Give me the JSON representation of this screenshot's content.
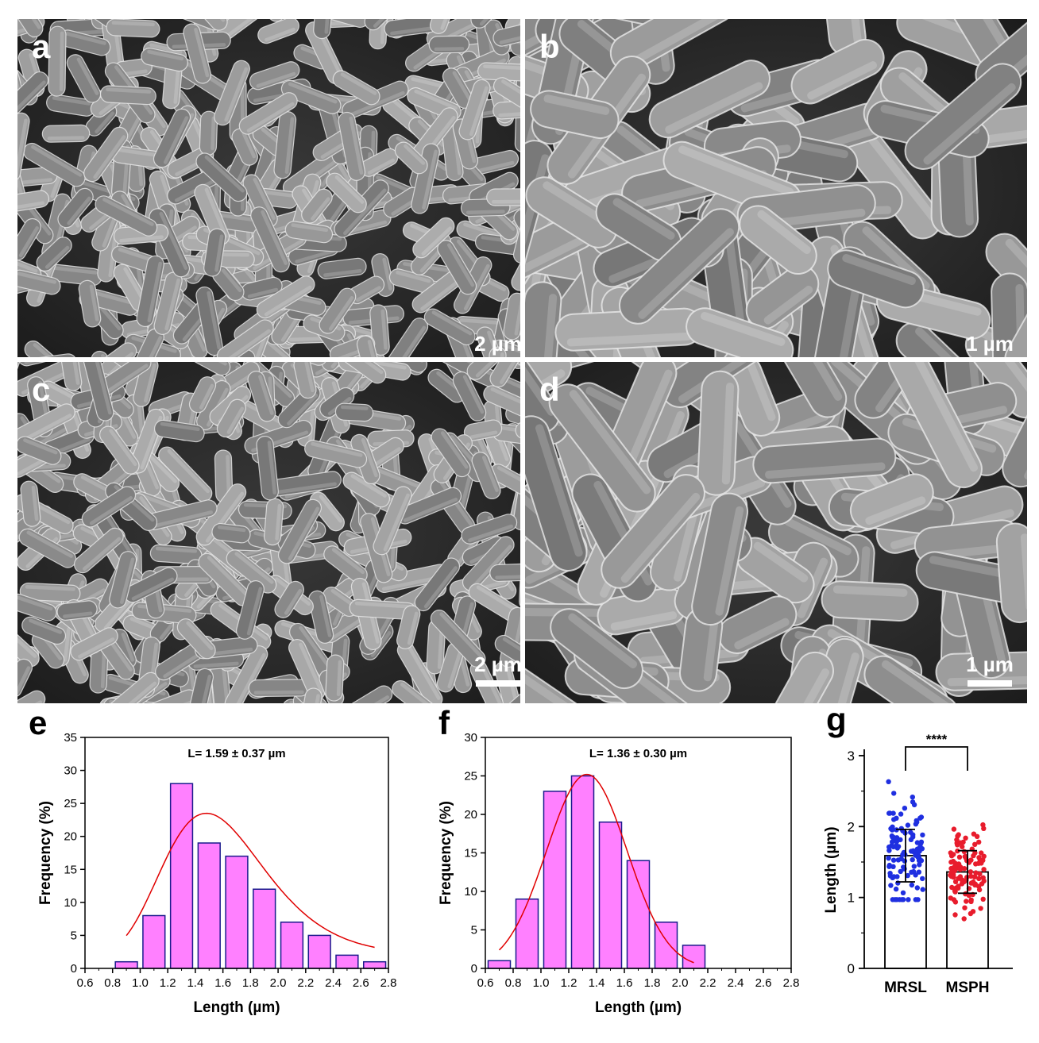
{
  "figure": {
    "panels": [
      {
        "id": "a",
        "label": "a",
        "scale": "2 µm",
        "bacteria_size": "small"
      },
      {
        "id": "b",
        "label": "b",
        "scale": "1 µm",
        "bacteria_size": "large"
      },
      {
        "id": "c",
        "label": "c",
        "scale": "2 µm",
        "bacteria_size": "small"
      },
      {
        "id": "d",
        "label": "d",
        "scale": "1 µm",
        "bacteria_size": "large"
      }
    ],
    "chart_labels": {
      "e": "e",
      "f": "f",
      "g": "g"
    }
  },
  "chart_data": [
    {
      "id": "e",
      "type": "bar",
      "title": "L= 1.59 ± 0.37 µm",
      "xlabel": "Length (µm)",
      "ylabel": "Frequency (%)",
      "xlim": [
        0.6,
        2.8
      ],
      "ylim": [
        0,
        35
      ],
      "xticks": [
        "0.6",
        "0.8",
        "1.0",
        "1.2",
        "1.4",
        "1.6",
        "1.8",
        "2.0",
        "2.2",
        "2.4",
        "2.6",
        "2.8"
      ],
      "yticks": [
        "0",
        "5",
        "10",
        "15",
        "20",
        "25",
        "30",
        "35"
      ],
      "bin_width": 0.2,
      "bin_centers": [
        0.9,
        1.1,
        1.3,
        1.5,
        1.7,
        1.9,
        2.1,
        2.3,
        2.5,
        2.7
      ],
      "values": [
        1,
        8,
        28,
        19,
        17,
        12,
        7,
        5,
        2,
        1
      ],
      "fit": {
        "type": "lognormal",
        "peak_x": 1.48,
        "peak_y": 23.5,
        "x_range": [
          0.9,
          2.7
        ]
      },
      "bar_color": "#ff80ff",
      "bar_edge": "#1a1a8c",
      "fit_color": "#e00000"
    },
    {
      "id": "f",
      "type": "bar",
      "title": "L= 1.36 ± 0.30 µm",
      "xlabel": "Length (µm)",
      "ylabel": "Frequency (%)",
      "xlim": [
        0.6,
        2.8
      ],
      "ylim": [
        0,
        30
      ],
      "xticks": [
        "0.6",
        "0.8",
        "1.0",
        "1.2",
        "1.4",
        "1.6",
        "1.8",
        "2.0",
        "2.2",
        "2.4",
        "2.6",
        "2.8"
      ],
      "yticks": [
        "0",
        "5",
        "10",
        "15",
        "20",
        "25",
        "30"
      ],
      "bin_width": 0.2,
      "bin_centers": [
        0.7,
        0.9,
        1.1,
        1.3,
        1.5,
        1.7,
        1.9,
        2.1
      ],
      "values": [
        1,
        9,
        23,
        25,
        19,
        14,
        6,
        3
      ],
      "fit": {
        "type": "gaussian",
        "mean": 1.33,
        "amplitude": 25.2,
        "sigma": 0.29,
        "x_range": [
          0.7,
          2.1
        ]
      },
      "bar_color": "#ff80ff",
      "bar_edge": "#1a1a8c",
      "fit_color": "#e00000"
    },
    {
      "id": "g",
      "type": "scatter",
      "ylabel": "Length (µm)",
      "categories": [
        "MRSL",
        "MSPH"
      ],
      "ylim": [
        0,
        3
      ],
      "yticks": [
        "0",
        "1",
        "2",
        "3"
      ],
      "significance": "****",
      "series": [
        {
          "name": "MRSL",
          "mean": 1.59,
          "sd": 0.37,
          "min": 0.97,
          "max": 2.65,
          "n": 110,
          "color": "#1f2fe0"
        },
        {
          "name": "MSPH",
          "mean": 1.36,
          "sd": 0.3,
          "min": 0.7,
          "max": 2.1,
          "n": 110,
          "color": "#e81c2c"
        }
      ]
    }
  ]
}
